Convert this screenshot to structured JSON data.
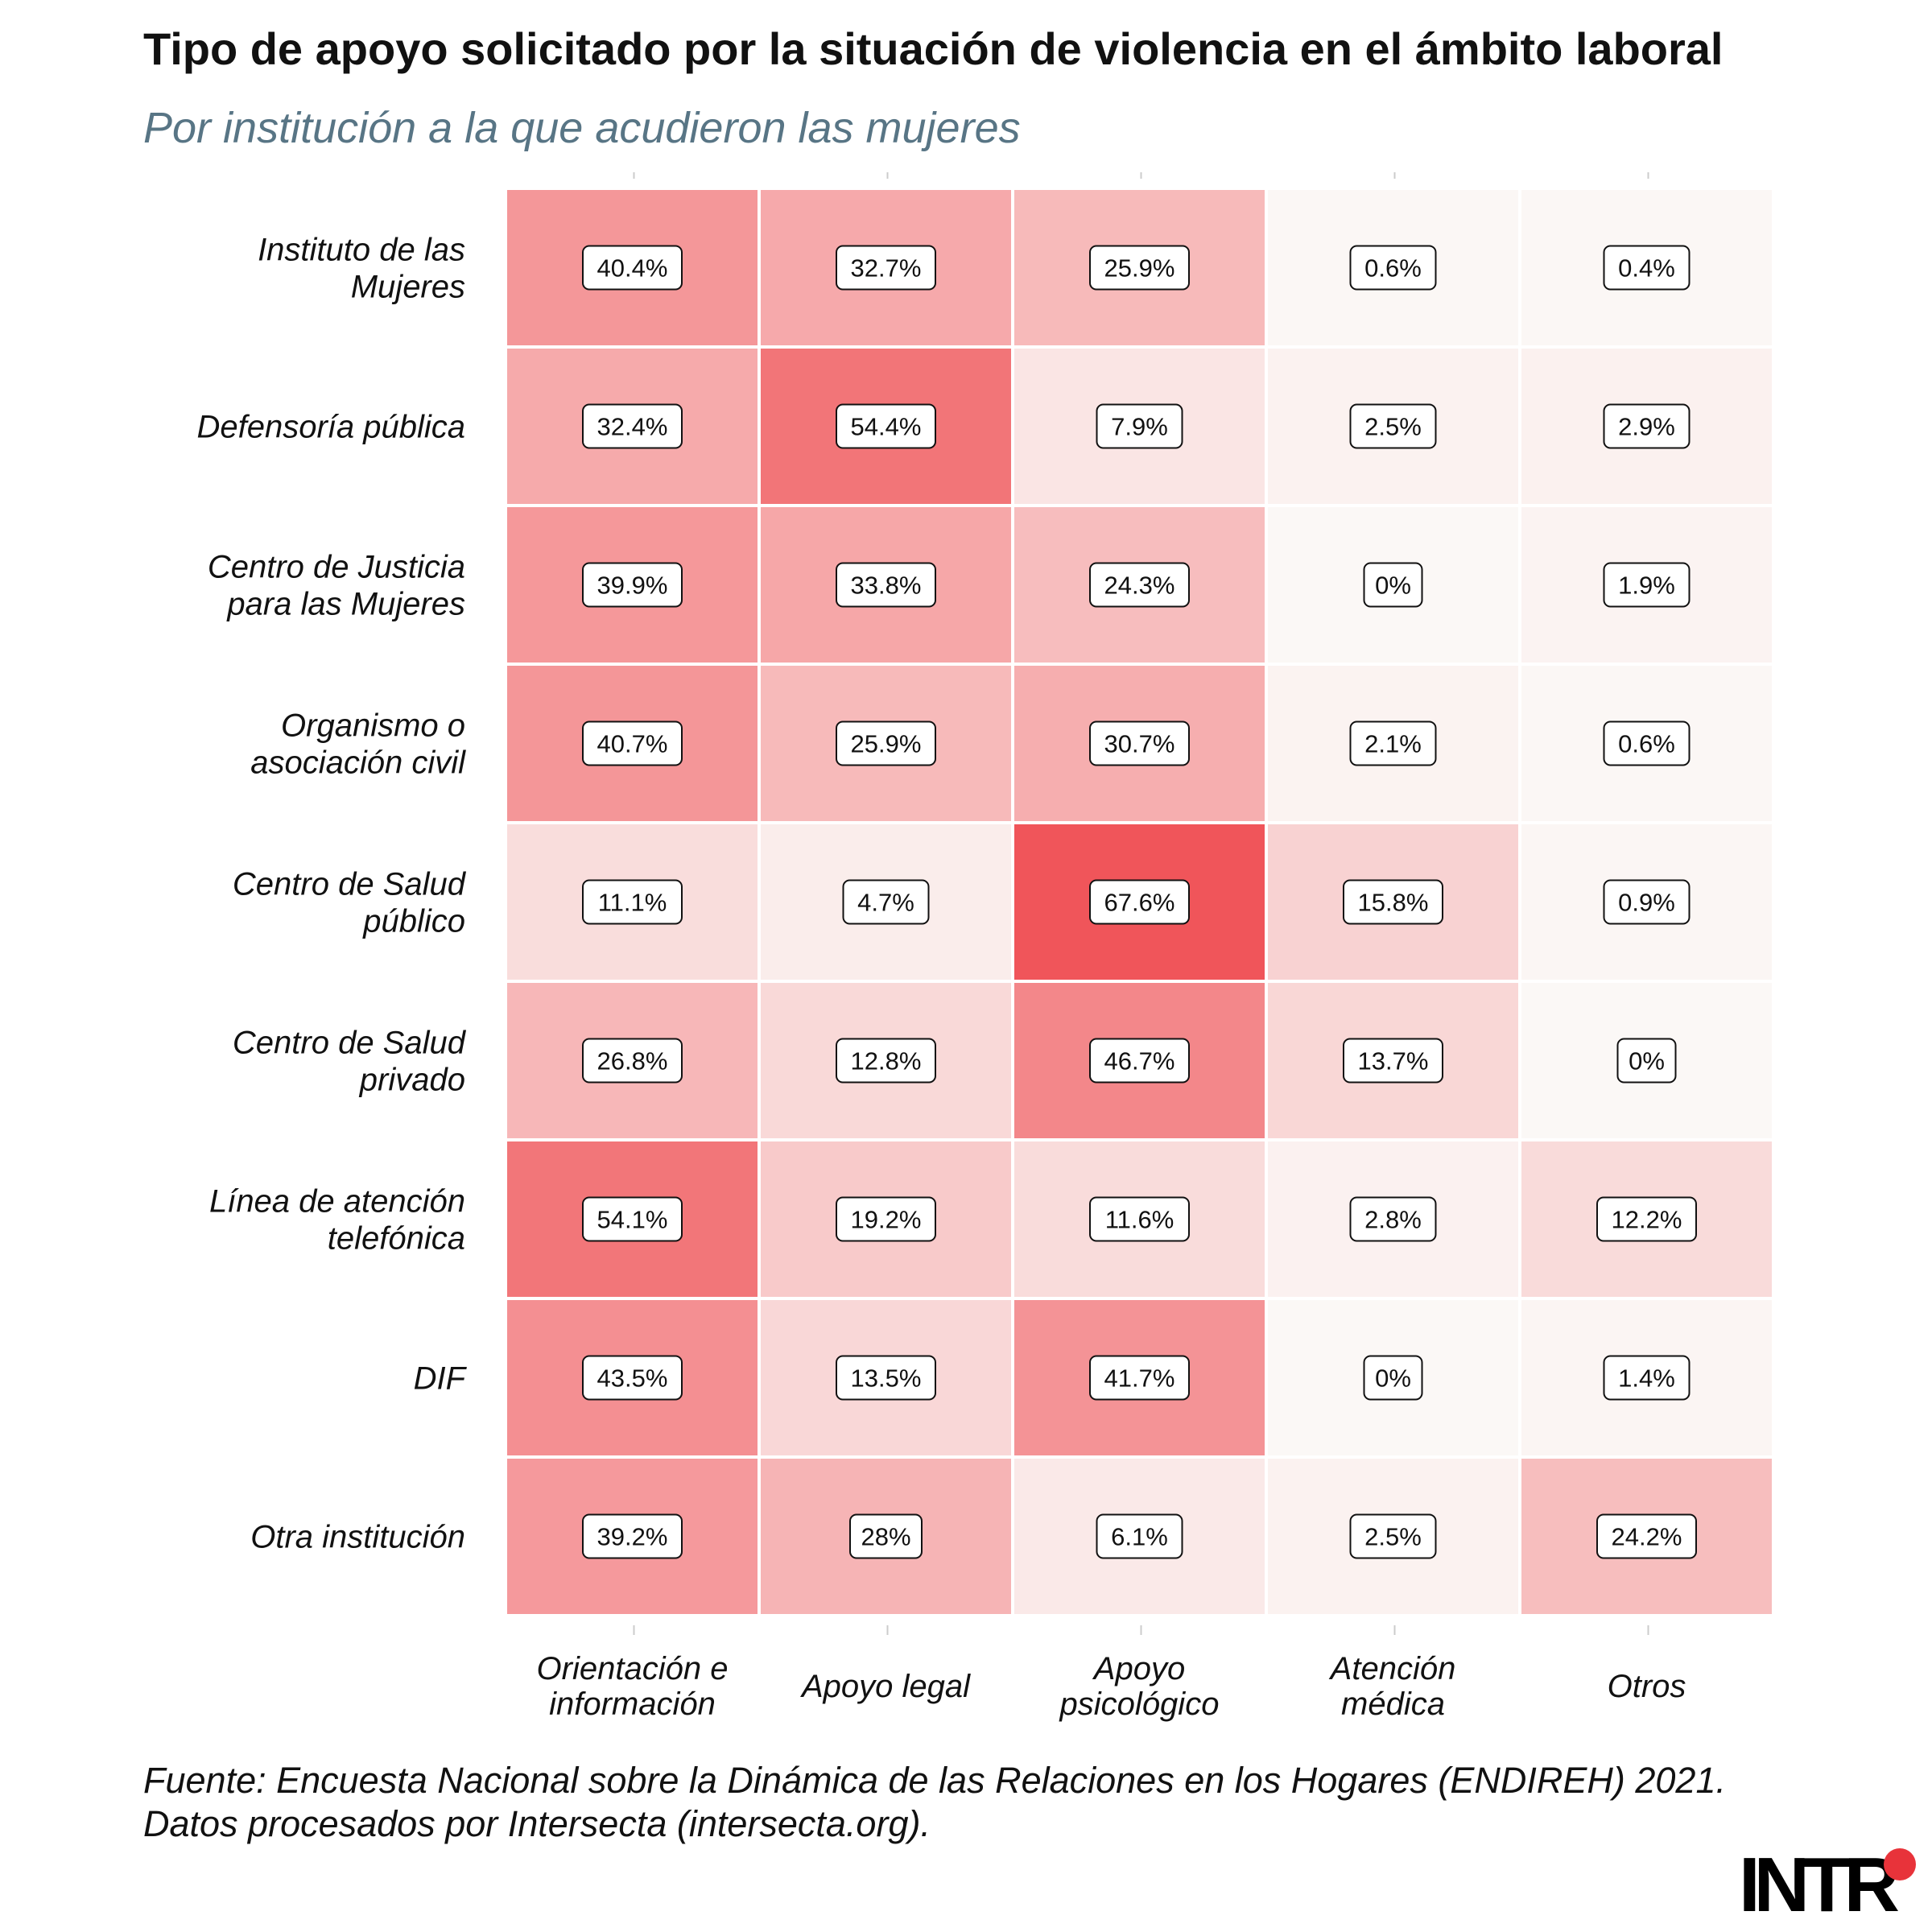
{
  "chart_data": {
    "type": "heatmap",
    "title": "Tipo de apoyo solicitado por la situación de violencia en el ámbito laboral",
    "subtitle": "Por institución a la que acudieron las mujeres",
    "rows": [
      [
        "Instituto de las",
        "Mujeres"
      ],
      [
        "Defensoría pública"
      ],
      [
        "Centro de Justicia",
        "para las Mujeres"
      ],
      [
        "Organismo o",
        "asociación civil"
      ],
      [
        "Centro de Salud",
        "público"
      ],
      [
        "Centro de Salud",
        "privado"
      ],
      [
        "Línea de atención",
        "telefónica"
      ],
      [
        "DIF"
      ],
      [
        "Otra institución"
      ]
    ],
    "columns": [
      [
        "Orientación e",
        "información"
      ],
      [
        "Apoyo legal"
      ],
      [
        "Apoyo",
        "psicológico"
      ],
      [
        "Atención",
        "médica"
      ],
      [
        "Otros"
      ]
    ],
    "values": [
      [
        40.4,
        32.7,
        25.9,
        0.6,
        0.4
      ],
      [
        32.4,
        54.4,
        7.9,
        2.5,
        2.9
      ],
      [
        39.9,
        33.8,
        24.3,
        0,
        1.9
      ],
      [
        40.7,
        25.9,
        30.7,
        2.1,
        0.6
      ],
      [
        11.1,
        4.7,
        67.6,
        15.8,
        0.9
      ],
      [
        26.8,
        12.8,
        46.7,
        13.7,
        0
      ],
      [
        54.1,
        19.2,
        11.6,
        2.8,
        12.2
      ],
      [
        43.5,
        13.5,
        41.7,
        0,
        1.4
      ],
      [
        39.2,
        28,
        6.1,
        2.5,
        24.2
      ]
    ],
    "value_suffix": "%",
    "color_low": "#fbf8f6",
    "color_high": "#f0555a",
    "value_max": 67.6
  },
  "source": {
    "line1": "Fuente: Encuesta Nacional sobre la Dinámica de las Relaciones en los Hogares (ENDIREH) 2021.",
    "line2": "Datos procesados por Intersecta (intersecta.org)."
  },
  "logo": {
    "text": "INTR",
    "dot_color": "#e8333a"
  }
}
